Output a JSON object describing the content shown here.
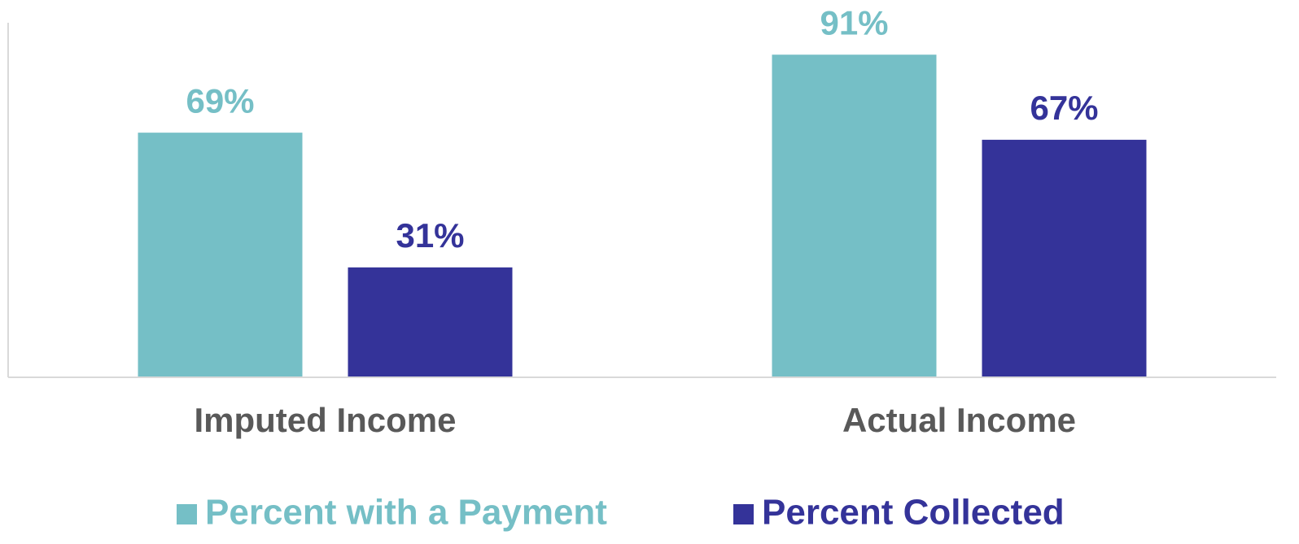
{
  "chart_data": {
    "type": "bar",
    "categories": [
      "Imputed Income",
      "Actual Income"
    ],
    "series": [
      {
        "name": "Percent with a Payment",
        "color": "#75bfc6",
        "values": [
          69,
          91
        ],
        "value_labels": [
          "69%",
          "91%"
        ]
      },
      {
        "name": "Percent Collected",
        "color": "#343399",
        "values": [
          31,
          67
        ],
        "value_labels": [
          "31%",
          "67%"
        ]
      }
    ],
    "ylim": [
      0,
      100
    ],
    "legend": "bottom"
  }
}
